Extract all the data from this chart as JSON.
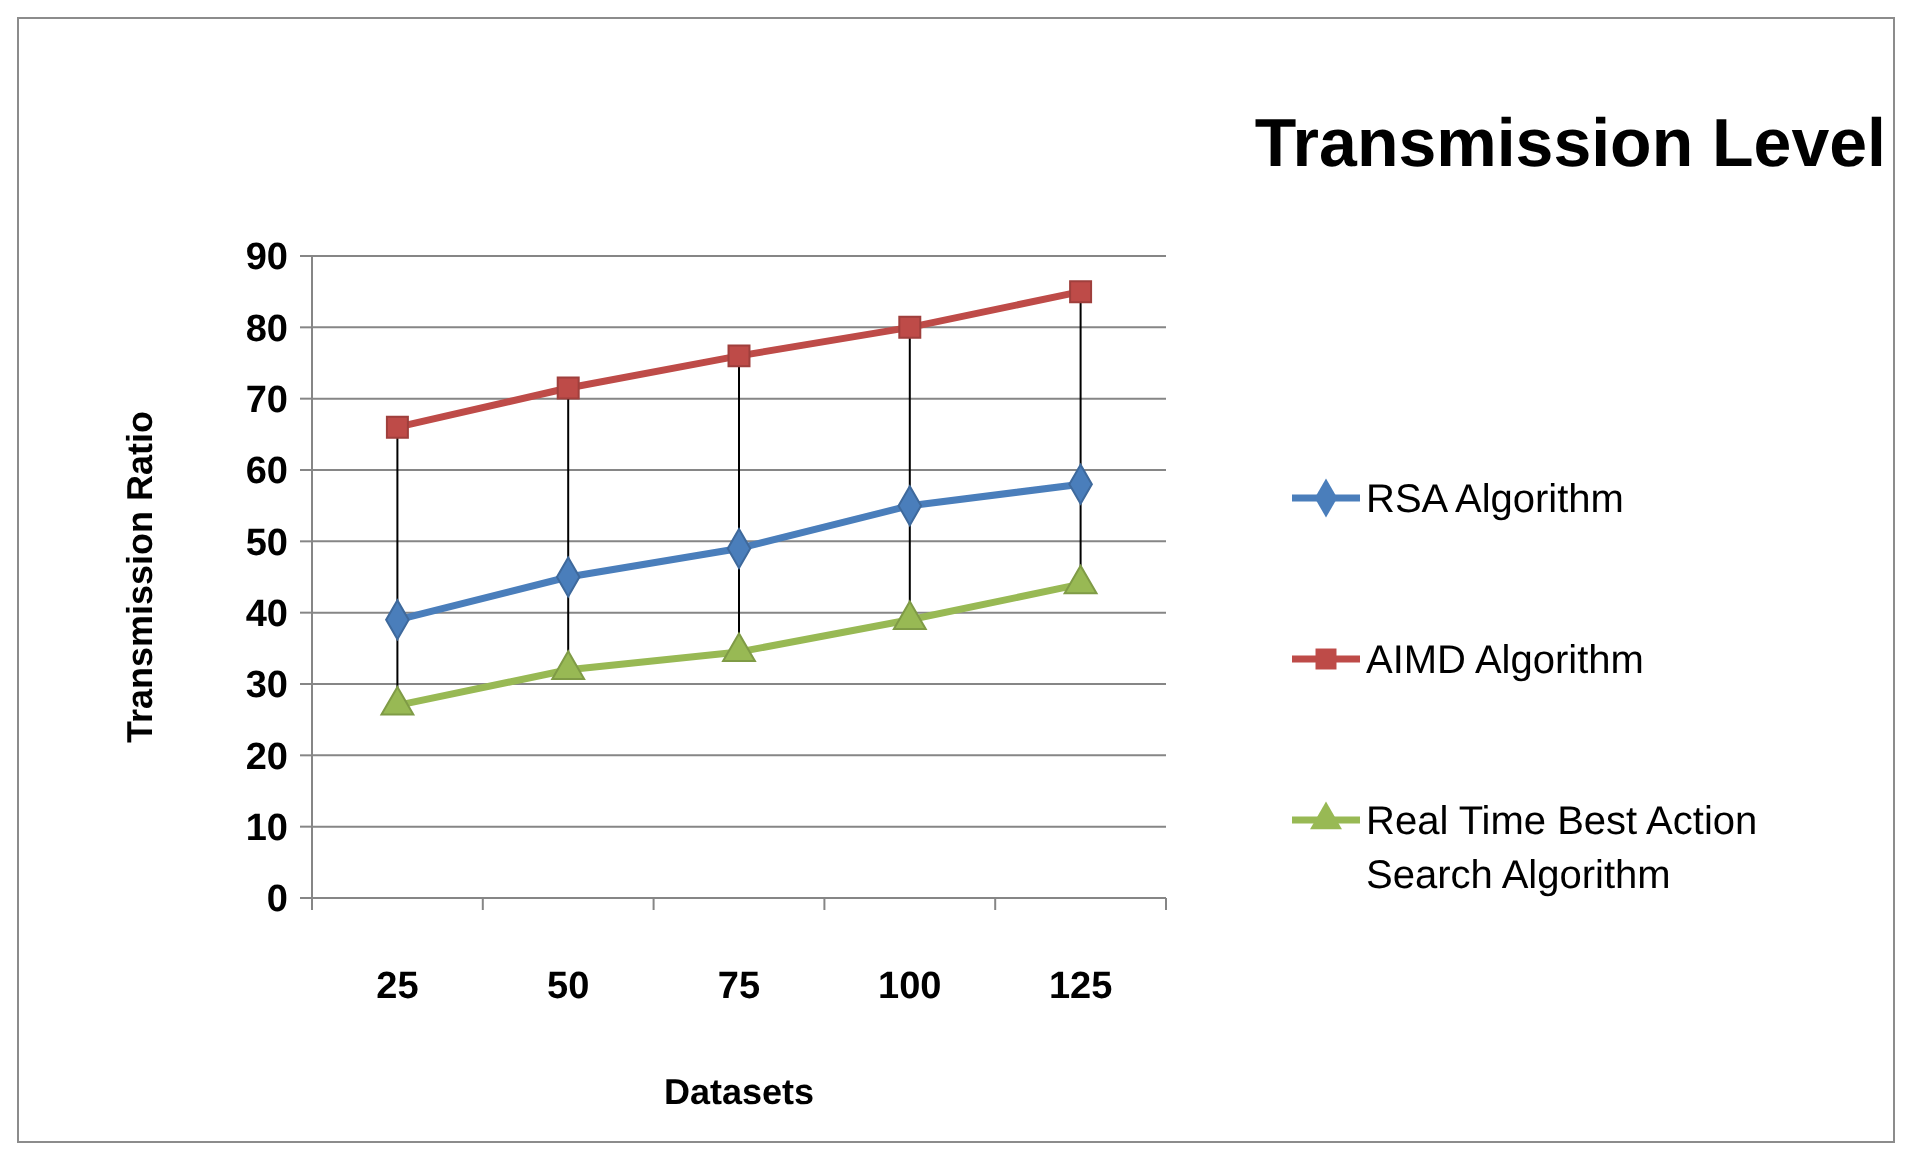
{
  "chart_data": {
    "type": "line",
    "title": "Transmission Level",
    "xlabel": "Datasets",
    "ylabel": "Transmission Ratio",
    "categories": [
      "25",
      "50",
      "75",
      "100",
      "125"
    ],
    "ylim": [
      0,
      90
    ],
    "yticks": [
      0,
      10,
      20,
      30,
      40,
      50,
      60,
      70,
      80,
      90
    ],
    "grid": "y",
    "legend": "right",
    "series": [
      {
        "name": "RSA Algorithm",
        "color": "#4a7ebb",
        "marker": "diamond",
        "values": [
          39,
          45,
          49,
          55,
          58
        ]
      },
      {
        "name": "AIMD Algorithm",
        "color": "#be4b48",
        "marker": "square",
        "values": [
          66,
          71.5,
          76,
          80,
          85
        ]
      },
      {
        "name": "Real Time Best Action Search Algorithm",
        "color": "#98b954",
        "marker": "triangle",
        "values": [
          27,
          32,
          34.5,
          39,
          44
        ]
      }
    ]
  }
}
